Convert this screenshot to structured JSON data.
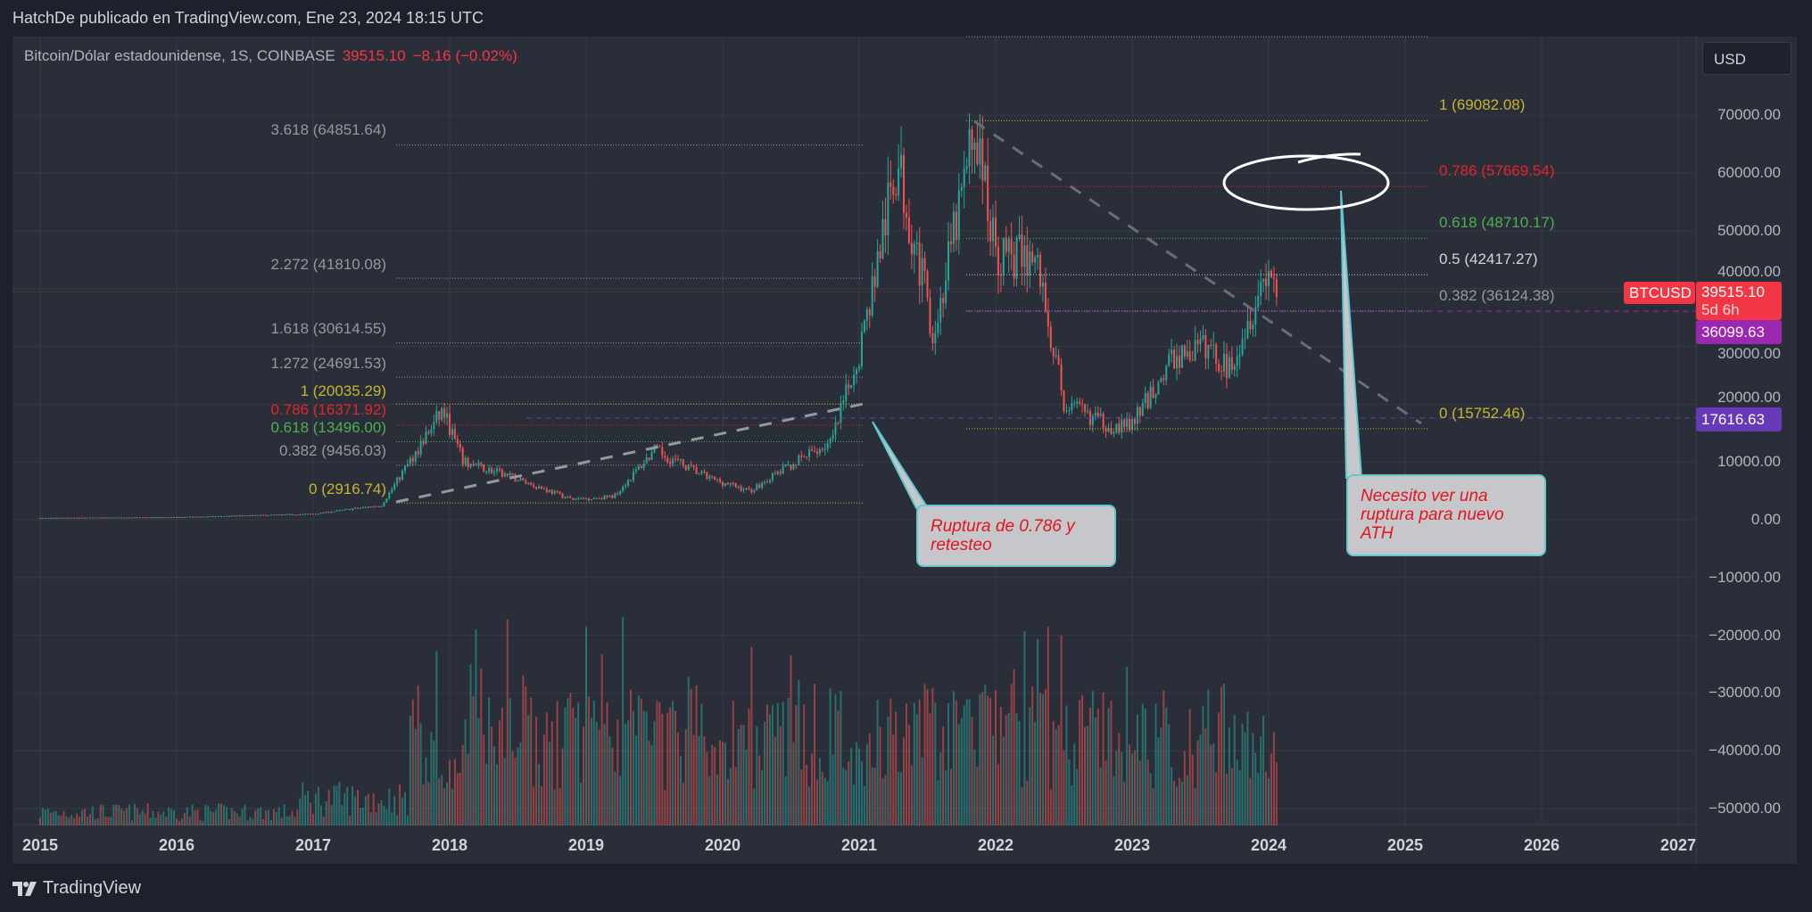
{
  "header": {
    "publish_line": "HatchDe publicado en TradingView.com, Ene 23, 2024 18:15 UTC"
  },
  "legend": {
    "symbol": "Bitcoin/Dólar estadounidense, 1S, COINBASE",
    "price": "39515.10",
    "change": "−8.16 (−0.02%)"
  },
  "currency_button": "USD",
  "price_tags": {
    "symbol": "BTCUSD",
    "last": "39515.10",
    "countdown": "5d 6h",
    "line_a": "36099.63",
    "line_b": "17616.63"
  },
  "price_axis": [
    "70000.00",
    "60000.00",
    "50000.00",
    "40000.00",
    "30000.00",
    "20000.00",
    "10000.00",
    "0.00",
    "−10000.00",
    "−20000.00",
    "−30000.00",
    "−40000.00",
    "−50000.00"
  ],
  "time_axis": [
    "2015",
    "2016",
    "2017",
    "2018",
    "2019",
    "2020",
    "2021",
    "2022",
    "2023",
    "2024",
    "2025",
    "2026",
    "2027"
  ],
  "fib_left": [
    {
      "label": "3.618 (64851.64)",
      "price": 64851.64,
      "color": "#9598a1"
    },
    {
      "label": "2.272 (41810.08)",
      "price": 41810.08,
      "color": "#9598a1"
    },
    {
      "label": "1.618 (30614.55)",
      "price": 30614.55,
      "color": "#9598a1"
    },
    {
      "label": "1.272 (24691.53)",
      "price": 24691.53,
      "color": "#9598a1"
    },
    {
      "label": "1 (20035.29)",
      "price": 20035.29,
      "color": "#c9b52d"
    },
    {
      "label": "0.786 (16371.92)",
      "price": 16371.92,
      "color": "#e3242b"
    },
    {
      "label": "0.618 (13496.00)",
      "price": 13496.0,
      "color": "#4caf50"
    },
    {
      "label": "0.382 (9456.03)",
      "price": 9456.03,
      "color": "#9598a1"
    },
    {
      "label": "0 (2916.74)",
      "price": 2916.74,
      "color": "#c9b52d"
    }
  ],
  "fib_right": [
    {
      "label": "1 (69082.08)",
      "price": 69082.08,
      "color": "#c9b52d"
    },
    {
      "label": "0.786 (57669.54)",
      "price": 57669.54,
      "color": "#e3242b"
    },
    {
      "label": "0.618 (48710.17)",
      "price": 48710.17,
      "color": "#4caf50"
    },
    {
      "label": "0.5 (42417.27)",
      "price": 42417.27,
      "color": "#d1d4dc"
    },
    {
      "label": "0.382 (36124.38)",
      "price": 36124.38,
      "color": "#9598a1"
    },
    {
      "label": "0 (15752.46)",
      "price": 15752.46,
      "color": "#c9b52d"
    }
  ],
  "callouts": [
    {
      "text": "Ruptura de 0.786 y retesteo"
    },
    {
      "text": "Necesito ver una ruptura para  nuevo ATH"
    }
  ],
  "colors": {
    "up": "#26a69a",
    "down": "#ef5350",
    "last_price": "#f23645",
    "horizontal_line": "#9c27b0",
    "horizontal_line_b": "#673ab7"
  },
  "footer": {
    "brand": "TradingView"
  }
}
